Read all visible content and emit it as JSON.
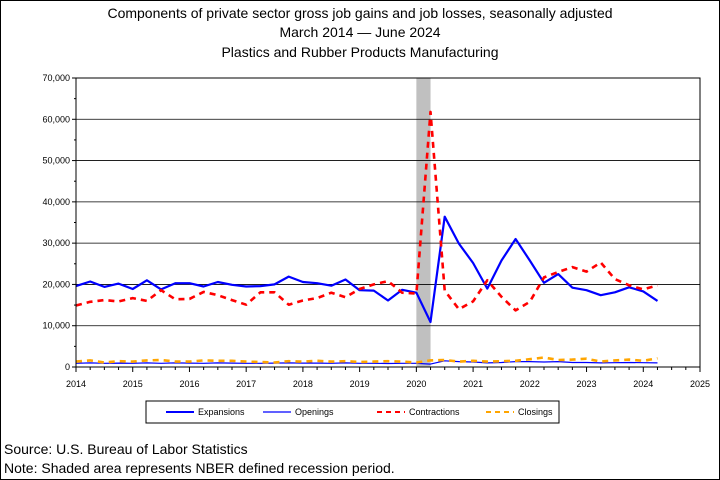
{
  "chart_data": {
    "type": "line",
    "title_lines": [
      "Components of private sector gross job gains and job losses, seasonally adjusted",
      "March 2014 — June 2024",
      "Plastics and Rubber Products Manufacturing"
    ],
    "xlabel": "",
    "ylabel": "",
    "x_ticks": [
      "2014",
      "2015",
      "2016",
      "2017",
      "2018",
      "2019",
      "2020",
      "2021",
      "2022",
      "2023",
      "2024",
      "2025"
    ],
    "y_ticks": [
      "0",
      "10,000",
      "20,000",
      "30,000",
      "40,000",
      "50,000",
      "60,000",
      "70,000"
    ],
    "xlim": [
      2014,
      2025
    ],
    "ylim": [
      0,
      70000
    ],
    "grid": true,
    "legend_position": "bottom",
    "recession_shading": {
      "start": 2020.0,
      "end": 2020.25,
      "color": "#c0c0c0"
    },
    "x": [
      2014.0,
      2014.25,
      2014.5,
      2014.75,
      2015.0,
      2015.25,
      2015.5,
      2015.75,
      2016.0,
      2016.25,
      2016.5,
      2016.75,
      2017.0,
      2017.25,
      2017.5,
      2017.75,
      2018.0,
      2018.25,
      2018.5,
      2018.75,
      2019.0,
      2019.25,
      2019.5,
      2019.75,
      2020.0,
      2020.25,
      2020.5,
      2020.75,
      2021.0,
      2021.25,
      2021.5,
      2021.75,
      2022.0,
      2022.25,
      2022.5,
      2022.75,
      2023.0,
      2023.25,
      2023.5,
      2023.75,
      2024.0,
      2024.25
    ],
    "series": [
      {
        "name": "Expansions",
        "color": "#0000ff",
        "style": "solid",
        "width": 2.2,
        "values": [
          19600,
          20700,
          19400,
          20200,
          18900,
          21000,
          18800,
          20300,
          20300,
          19500,
          20600,
          19900,
          19500,
          19600,
          20000,
          21900,
          20600,
          20300,
          19700,
          21200,
          18600,
          18500,
          16100,
          18700,
          18000,
          10900,
          36400,
          29900,
          25200,
          19000,
          25800,
          31000,
          25800,
          20400,
          22500,
          19200,
          18600,
          17400,
          18100,
          19300,
          18300,
          16000
        ]
      },
      {
        "name": "Openings",
        "color": "#0000ff",
        "style": "solid",
        "width": 1.2,
        "values": [
          900,
          1000,
          900,
          950,
          900,
          1000,
          900,
          1000,
          950,
          900,
          1000,
          950,
          900,
          900,
          950,
          1000,
          950,
          950,
          900,
          1000,
          900,
          900,
          850,
          900,
          900,
          700,
          1500,
          1300,
          1200,
          1000,
          1100,
          1300,
          1300,
          1200,
          1300,
          1100,
          1100,
          1000,
          1050,
          1100,
          1050,
          1000
        ]
      },
      {
        "name": "Contractions",
        "color": "#ff0000",
        "style": "dashed",
        "width": 2.6,
        "values": [
          14900,
          15800,
          16200,
          15900,
          16700,
          16000,
          18600,
          16400,
          16500,
          18200,
          17400,
          16200,
          15100,
          18100,
          18100,
          15100,
          16100,
          16700,
          18000,
          16900,
          18900,
          20000,
          20800,
          18000,
          17800,
          61800,
          18500,
          14000,
          15900,
          21000,
          17000,
          13700,
          15800,
          21700,
          23000,
          24200,
          23100,
          25300,
          21300,
          19800,
          18800,
          19800
        ]
      },
      {
        "name": "Closings",
        "color": "#ffa500",
        "style": "dashed",
        "width": 2.6,
        "values": [
          1300,
          1600,
          1100,
          1400,
          1300,
          1600,
          1700,
          1300,
          1300,
          1600,
          1500,
          1500,
          1300,
          1200,
          1100,
          1400,
          1300,
          1500,
          1300,
          1400,
          1200,
          1300,
          1400,
          1300,
          1100,
          1600,
          1700,
          1300,
          1500,
          1300,
          1400,
          1500,
          1900,
          2300,
          1700,
          1800,
          2000,
          1300,
          1600,
          1800,
          1500,
          2100
        ]
      }
    ]
  },
  "footer": {
    "source": "Source: U.S. Bureau of Labor Statistics",
    "note": "Note: Shaded area represents NBER defined recession period."
  }
}
